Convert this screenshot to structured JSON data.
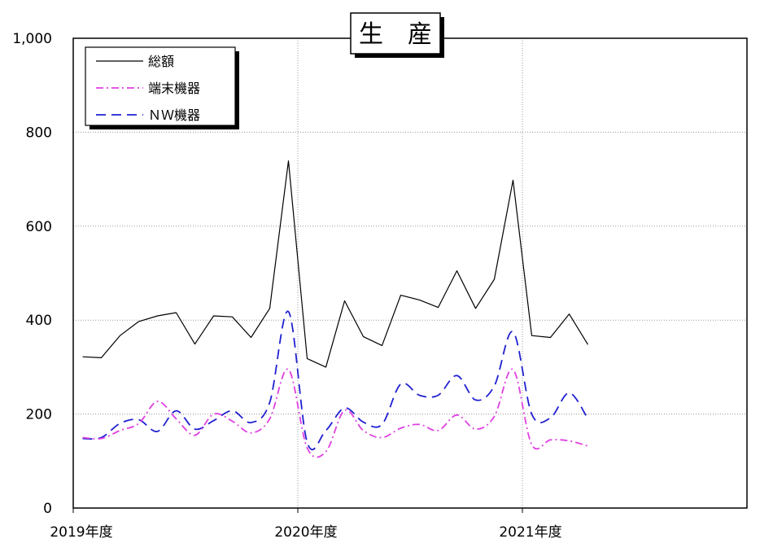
{
  "chart_data": {
    "type": "line",
    "title": "生　産",
    "ylim": [
      0,
      1000
    ],
    "yticks": [
      0,
      200,
      400,
      600,
      800,
      1000
    ],
    "ytick_labels": [
      "0",
      "200",
      "400",
      "600",
      "800",
      "1,000"
    ],
    "x_range": [
      0,
      36
    ],
    "xticks": [
      0,
      12,
      24
    ],
    "xtick_labels": [
      "2019年度",
      "2020年度",
      "2021年度"
    ],
    "grid": true,
    "legend_position": "top-left",
    "series": [
      {
        "name": "総額",
        "color": "#000000",
        "style": "solid",
        "x": [
          0,
          1,
          2,
          3,
          4,
          5,
          6,
          7,
          8,
          9,
          10,
          11,
          12,
          13,
          14,
          15,
          16,
          17,
          18,
          19,
          20,
          21,
          22,
          23,
          24,
          25,
          26,
          27
        ],
        "values": [
          322,
          320,
          367,
          397,
          409,
          416,
          349,
          409,
          407,
          363,
          425,
          739,
          318,
          300,
          441,
          365,
          346,
          453,
          443,
          427,
          505,
          425,
          487,
          698,
          367,
          363,
          413,
          348
        ]
      },
      {
        "name": "端末機器",
        "color": "#e040e0",
        "style": "dashdot",
        "x": [
          0,
          1,
          2,
          3,
          4,
          5,
          6,
          7,
          8,
          9,
          10,
          11,
          12,
          13,
          14,
          15,
          16,
          17,
          18,
          19,
          20,
          21,
          22,
          23,
          24,
          25,
          26,
          27
        ],
        "values": [
          150,
          148,
          165,
          180,
          227,
          190,
          155,
          200,
          185,
          160,
          190,
          295,
          128,
          120,
          208,
          165,
          150,
          170,
          178,
          165,
          198,
          168,
          195,
          295,
          135,
          145,
          143,
          132
        ]
      },
      {
        "name": "ＮＷ機器",
        "color": "#2020d0",
        "style": "dashed",
        "x": [
          0,
          1,
          2,
          3,
          4,
          5,
          6,
          7,
          8,
          9,
          10,
          11,
          12,
          13,
          14,
          15,
          16,
          17,
          18,
          19,
          20,
          21,
          22,
          23,
          24,
          25,
          26,
          27
        ],
        "values": [
          148,
          150,
          180,
          188,
          163,
          207,
          168,
          186,
          207,
          182,
          225,
          418,
          140,
          165,
          213,
          183,
          178,
          264,
          240,
          240,
          282,
          230,
          260,
          375,
          200,
          192,
          245,
          190
        ]
      }
    ]
  }
}
